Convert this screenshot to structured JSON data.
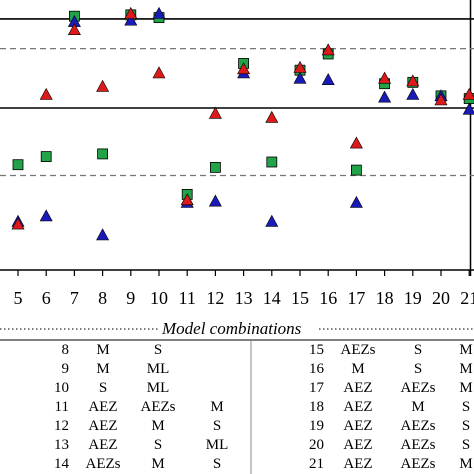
{
  "chart_data": {
    "type": "scatter",
    "title": "",
    "xlabel": "Model combinations",
    "ylabel": "",
    "x_ticks": [
      5,
      6,
      7,
      8,
      9,
      10,
      11,
      12,
      13,
      14,
      15,
      16,
      17,
      18,
      19,
      20,
      21
    ],
    "xlim": [
      4.25,
      21.5
    ],
    "ylim": [
      0,
      100
    ],
    "grid": false,
    "legend": "none",
    "reference_lines": [
      {
        "style": "solid",
        "value": 93
      },
      {
        "style": "dashed",
        "value": 82
      },
      {
        "style": "solid",
        "value": 60
      },
      {
        "style": "dashed",
        "value": 35
      }
    ],
    "series": [
      {
        "marker": "square",
        "color": "#22a34a",
        "points": [
          [
            5,
            39
          ],
          [
            6,
            42
          ],
          [
            7,
            94
          ],
          [
            8,
            43
          ],
          [
            9,
            94.5
          ],
          [
            10,
            93.5
          ],
          [
            11,
            28
          ],
          [
            12,
            38
          ],
          [
            13,
            76.5
          ],
          [
            14,
            40
          ],
          [
            15,
            74
          ],
          [
            16,
            80
          ],
          [
            17,
            37
          ],
          [
            18,
            69
          ],
          [
            19,
            69.5
          ],
          [
            20,
            64.5
          ],
          [
            21,
            63.5
          ]
        ]
      },
      {
        "marker": "triangle",
        "color": "#1a1ab8",
        "points": [
          [
            5,
            18
          ],
          [
            6,
            20
          ],
          [
            7,
            92
          ],
          [
            8,
            13
          ],
          [
            9,
            92.5
          ],
          [
            10,
            95
          ],
          [
            11,
            25
          ],
          [
            12,
            25.5
          ],
          [
            13,
            73
          ],
          [
            14,
            18
          ],
          [
            15,
            71
          ],
          [
            16,
            70.5
          ],
          [
            17,
            25
          ],
          [
            18,
            64
          ],
          [
            19,
            65
          ],
          [
            20,
            64.5
          ],
          [
            21,
            59.5
          ]
        ]
      },
      {
        "marker": "triangle",
        "color": "#dd1a1a",
        "points": [
          [
            5,
            17
          ],
          [
            6,
            65
          ],
          [
            7,
            89
          ],
          [
            8,
            68
          ],
          [
            9,
            95
          ],
          [
            10,
            73
          ],
          [
            11,
            26
          ],
          [
            12,
            58
          ],
          [
            13,
            74.5
          ],
          [
            14,
            56.5
          ],
          [
            15,
            75
          ],
          [
            16,
            81.5
          ],
          [
            17,
            47
          ],
          [
            18,
            71
          ],
          [
            19,
            70
          ],
          [
            20,
            63
          ],
          [
            21,
            65
          ]
        ]
      }
    ]
  },
  "table": {
    "title": "Model combinations",
    "left_rows": [
      {
        "n": "8",
        "c1": "M",
        "c2": "S",
        "c3": ""
      },
      {
        "n": "9",
        "c1": "M",
        "c2": "ML",
        "c3": ""
      },
      {
        "n": "10",
        "c1": "S",
        "c2": "ML",
        "c3": ""
      },
      {
        "n": "11",
        "c1": "AEZ",
        "c2": "AEZs",
        "c3": "M"
      },
      {
        "n": "12",
        "c1": "AEZ",
        "c2": "M",
        "c3": "S"
      },
      {
        "n": "13",
        "c1": "AEZ",
        "c2": "S",
        "c3": "ML"
      },
      {
        "n": "14",
        "c1": "AEZs",
        "c2": "M",
        "c3": "S"
      }
    ],
    "right_rows": [
      {
        "n": "15",
        "c1": "AEZs",
        "c2": "S",
        "c3": "M"
      },
      {
        "n": "16",
        "c1": "M",
        "c2": "S",
        "c3": "M"
      },
      {
        "n": "17",
        "c1": "AEZ",
        "c2": "AEZs",
        "c3": "M"
      },
      {
        "n": "18",
        "c1": "AEZ",
        "c2": "M",
        "c3": "S"
      },
      {
        "n": "19",
        "c1": "AEZ",
        "c2": "AEZs",
        "c3": "S"
      },
      {
        "n": "20",
        "c1": "AEZ",
        "c2": "AEZs",
        "c3": "S"
      },
      {
        "n": "21",
        "c1": "AEZ",
        "c2": "AEZs",
        "c3": "M"
      }
    ]
  }
}
